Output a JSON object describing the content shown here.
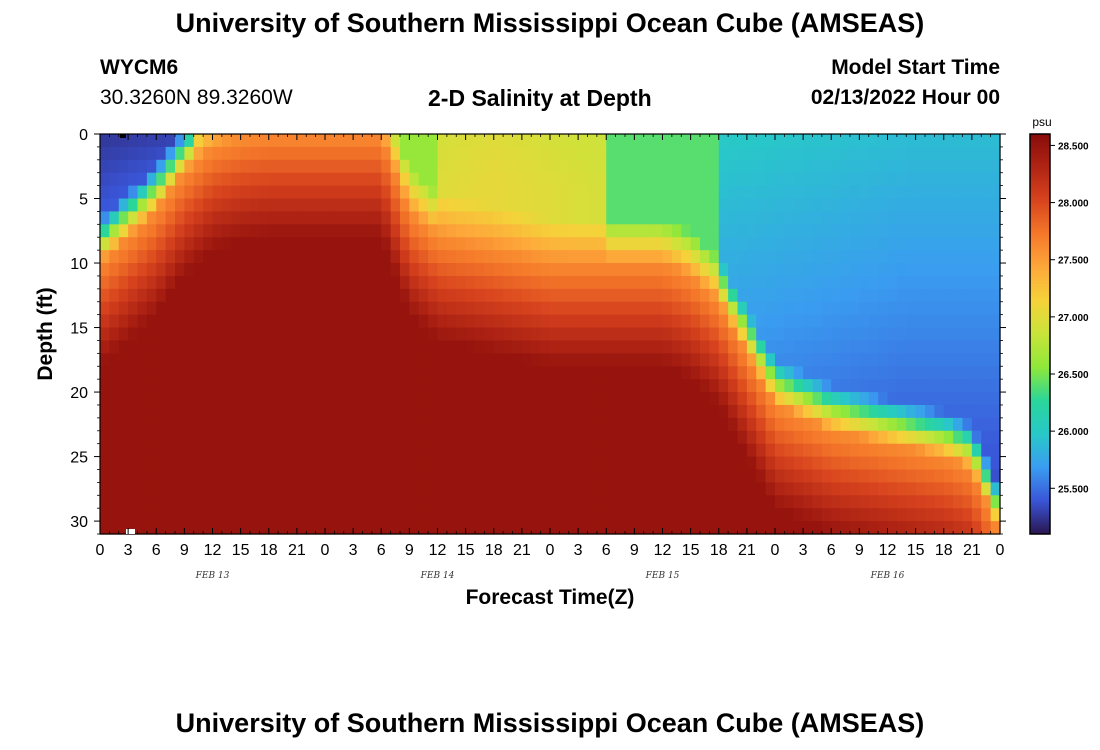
{
  "header": {
    "title": "University of Southern Mississippi Ocean Cube (AMSEAS)",
    "station": "WYCM6",
    "coords": "30.3260N  89.3260W",
    "subtitle": "2-D Salinity at Depth",
    "model_start_label": "Model Start Time",
    "model_start_value": "02/13/2022 Hour 00"
  },
  "footer": {
    "title": "University of Southern Mississippi Ocean Cube (AMSEAS)"
  },
  "chart_data": {
    "type": "heatmap",
    "title": "2-D Salinity at Depth",
    "xlabel": "Forecast Time(Z)",
    "ylabel": "Depth (ft)",
    "x_hours_range": [
      0,
      96
    ],
    "x_tick_labels": [
      "0",
      "3",
      "6",
      "9",
      "12",
      "15",
      "18",
      "21",
      "0",
      "3",
      "6",
      "9",
      "12",
      "15",
      "18",
      "21",
      "0",
      "3",
      "6",
      "9",
      "12",
      "15",
      "18",
      "21",
      "0",
      "3",
      "6",
      "9",
      "12",
      "15",
      "18",
      "21",
      "0"
    ],
    "date_labels": [
      "FEB 13",
      "FEB 14",
      "FEB 15",
      "FEB 16"
    ],
    "y_ticks": [
      0,
      5,
      10,
      15,
      20,
      25,
      30
    ],
    "ylim": [
      0,
      31
    ],
    "colorbar": {
      "unit": "psu",
      "range": [
        25.1,
        28.6
      ],
      "ticks": [
        "28.500",
        "28.000",
        "27.500",
        "27.000",
        "26.500",
        "26.000",
        "25.500"
      ],
      "tick_values": [
        28.5,
        28.0,
        27.5,
        27.0,
        26.5,
        26.0,
        25.5
      ],
      "colors": [
        "#2a1650",
        "#3a55d8",
        "#3a9cf0",
        "#28c8c8",
        "#2ad69a",
        "#8ee83a",
        "#c8e43a",
        "#f5d23a",
        "#fda83a",
        "#f5782a",
        "#d8441e",
        "#b02414",
        "#880c0a"
      ]
    },
    "boundaries": {
      "hours": [
        0,
        3,
        6,
        9,
        12,
        15,
        18,
        21,
        24,
        27,
        30,
        33,
        36,
        39,
        42,
        45,
        48,
        51,
        54,
        57,
        60,
        63,
        66,
        69,
        72,
        75,
        78,
        81,
        84,
        87,
        90,
        93,
        96
      ],
      "fresh_layer_depth_ft": [
        10,
        8,
        6,
        3,
        1,
        0.3,
        0,
        0,
        0,
        0,
        0,
        6,
        8,
        8.5,
        9,
        9.5,
        10,
        10,
        10,
        10,
        10,
        11,
        13,
        17,
        21,
        22,
        23,
        23.5,
        24,
        24.5,
        25,
        26,
        31
      ]
    }
  }
}
